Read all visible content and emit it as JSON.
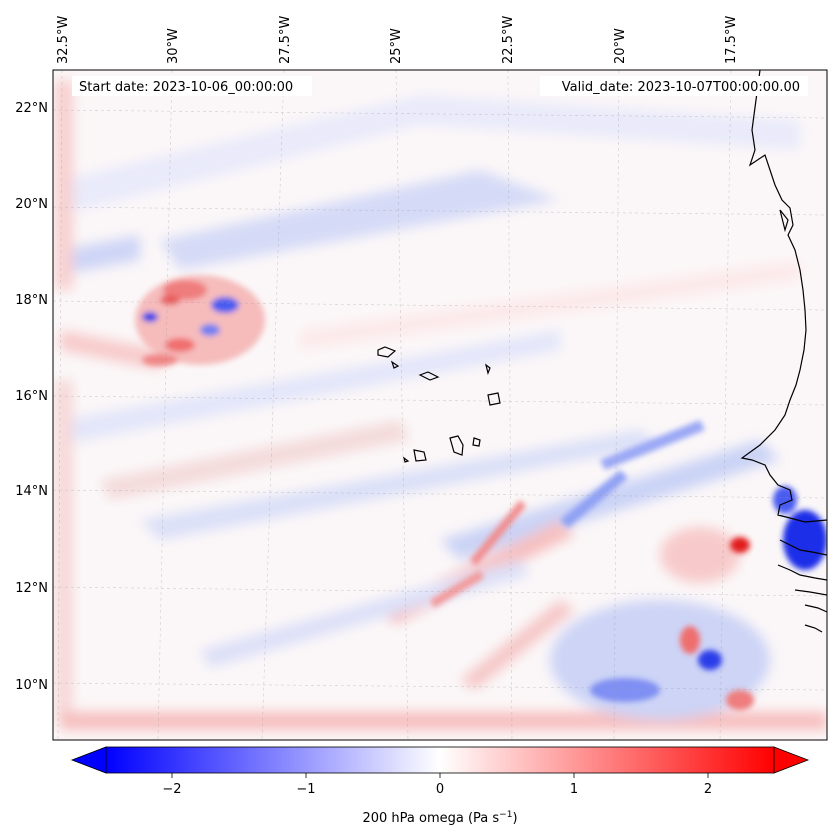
{
  "header": {
    "start_date": "Start date: 2023-10-06_00:00:00",
    "valid_date": "Valid_date: 2023-10-07T00:00:00.00"
  },
  "map": {
    "lon_labels": [
      "32.5°W",
      "30°W",
      "27.5°W",
      "25°W",
      "22.5°W",
      "20°W",
      "17.5°W"
    ],
    "lat_labels": [
      "22°N",
      "20°N",
      "18°N",
      "16°N",
      "14°N",
      "12°N",
      "10°N"
    ],
    "colormap": [
      "#0000ff",
      "#ffffff",
      "#ff0000"
    ],
    "gridlines": true
  },
  "colorbar": {
    "label": "200 hPa omega (Pa s",
    "label_sup": "−1",
    "label_end": ")",
    "ticks": [
      "−2",
      "−1",
      "0",
      "1",
      "2"
    ],
    "range": [
      -2.7,
      2.7
    ],
    "extend": "both"
  }
}
